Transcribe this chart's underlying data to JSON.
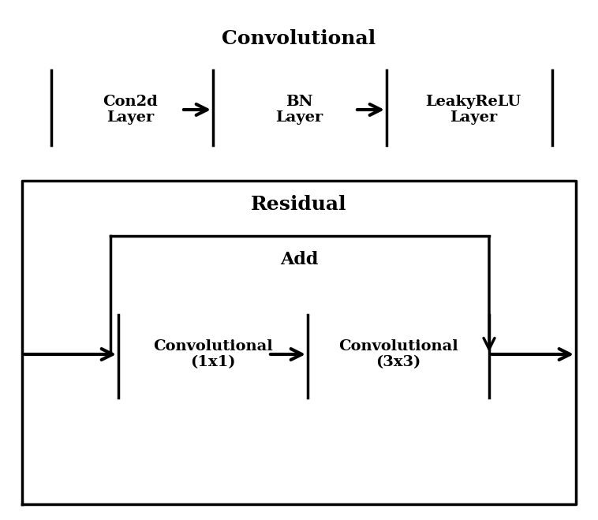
{
  "bg_color": "#ffffff",
  "title1": "Convolutional",
  "title2": "Residual",
  "conv_labels": [
    "Con2d\nLayer",
    "BN\nLayer",
    "LeakyReLU\nLayer"
  ],
  "res_labels": [
    "Convolutional\n(1x1)",
    "Convolutional\n(3x3)"
  ],
  "add_label": "Add",
  "title_fontsize": 18,
  "block_fontsize": 14,
  "add_fontsize": 16,
  "text_color": "#000000",
  "line_width": 2.5,
  "arrow_lw": 3.0
}
